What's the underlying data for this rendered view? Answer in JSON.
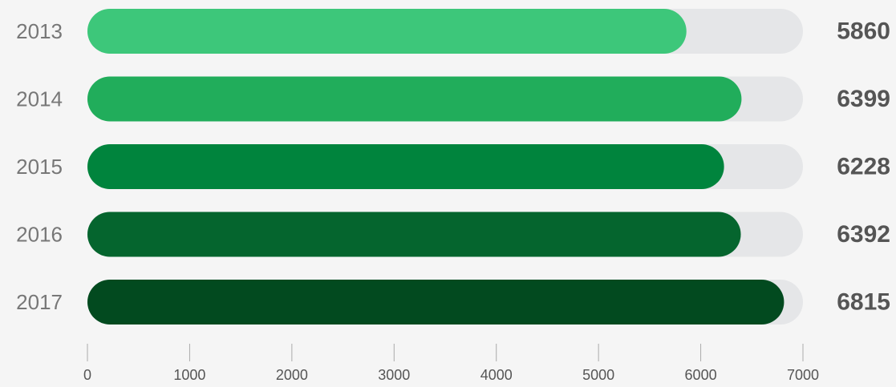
{
  "chart_data": {
    "type": "bar",
    "orientation": "horizontal",
    "categories": [
      "2013",
      "2014",
      "2015",
      "2016",
      "2017"
    ],
    "values": [
      5860,
      6399,
      6228,
      6392,
      6815
    ],
    "value_labels": [
      "5860",
      "6399",
      "6228",
      "6392",
      "6815"
    ],
    "xlim": [
      0,
      7000
    ],
    "xticks": [
      0,
      1000,
      2000,
      3000,
      4000,
      5000,
      6000,
      7000
    ],
    "xtick_labels": [
      "0",
      "1000",
      "2000",
      "3000",
      "4000",
      "5000",
      "6000",
      "7000"
    ],
    "title": "",
    "xlabel": "",
    "ylabel": "",
    "grid": false,
    "legend": "none",
    "colors": {
      "bars": [
        "#3dc77a",
        "#21ad5b",
        "#00843d",
        "#05652e",
        "#024a1f"
      ],
      "track": "#e5e6e8",
      "background": "#f5f5f5",
      "category_label": "#777777",
      "value_label": "#555555",
      "tick": "#aaaaaa",
      "tick_label": "#555555"
    }
  }
}
